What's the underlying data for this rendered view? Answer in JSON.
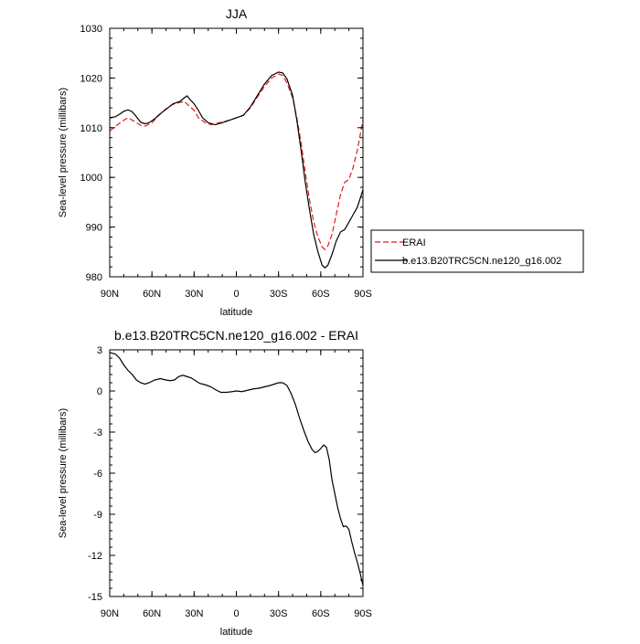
{
  "chart_data": [
    {
      "type": "line",
      "title": "JJA",
      "xlabel": "latitude",
      "ylabel": "Sea-level pressure (millibars)",
      "xlim": [
        90,
        -90
      ],
      "ylim": [
        980,
        1030
      ],
      "yticks": [
        980,
        990,
        1000,
        1010,
        1020,
        1030
      ],
      "xticks": [
        90,
        60,
        30,
        0,
        -30,
        -60,
        -90
      ],
      "xtick_labels": [
        "90N",
        "60N",
        "30N",
        "0",
        "30S",
        "60S",
        "90S"
      ],
      "legend_placement": "outside-right",
      "series": [
        {
          "name": "ERAI",
          "color": "#e41a1c",
          "dash": "dashed",
          "points": [
            [
              90,
              1009.3
            ],
            [
              85,
              1010.5
            ],
            [
              80,
              1011.5
            ],
            [
              77,
              1012
            ],
            [
              72,
              1011.2
            ],
            [
              68,
              1010.5
            ],
            [
              65,
              1010.3
            ],
            [
              60,
              1011
            ],
            [
              55,
              1012.5
            ],
            [
              50,
              1013.8
            ],
            [
              45,
              1014.7
            ],
            [
              40,
              1015.1
            ],
            [
              37,
              1015.3
            ],
            [
              34,
              1014.5
            ],
            [
              30,
              1013.5
            ],
            [
              27,
              1012
            ],
            [
              22,
              1011
            ],
            [
              18,
              1010.6
            ],
            [
              12,
              1011
            ],
            [
              5,
              1011.5
            ],
            [
              0,
              1012
            ],
            [
              -5,
              1012.5
            ],
            [
              -10,
              1014
            ],
            [
              -15,
              1016.2
            ],
            [
              -20,
              1018.3
            ],
            [
              -25,
              1020
            ],
            [
              -30,
              1020.8
            ],
            [
              -33,
              1020.5
            ],
            [
              -36,
              1019
            ],
            [
              -40,
              1016
            ],
            [
              -43,
              1012
            ],
            [
              -46,
              1007
            ],
            [
              -49,
              1001
            ],
            [
              -52,
              995.5
            ],
            [
              -55,
              991
            ],
            [
              -58,
              988
            ],
            [
              -61,
              986
            ],
            [
              -63,
              985.5
            ],
            [
              -65,
              986.2
            ],
            [
              -68,
              988.5
            ],
            [
              -71,
              992.5
            ],
            [
              -74,
              996.5
            ],
            [
              -77,
              999
            ],
            [
              -80,
              999.6
            ],
            [
              -83,
              1002
            ],
            [
              -86,
              1005.5
            ],
            [
              -90,
              1011.5
            ]
          ]
        },
        {
          "name": "b.e13.B20TRC5CN.ne120_g16.002",
          "color": "#000000",
          "dash": "solid",
          "points": [
            [
              90,
              1012
            ],
            [
              86,
              1012.2
            ],
            [
              83,
              1012.7
            ],
            [
              80,
              1013.3
            ],
            [
              77,
              1013.6
            ],
            [
              74,
              1013.2
            ],
            [
              71,
              1012.2
            ],
            [
              68,
              1011.1
            ],
            [
              65,
              1010.8
            ],
            [
              62,
              1011
            ],
            [
              58,
              1011.8
            ],
            [
              55,
              1012.6
            ],
            [
              50,
              1013.7
            ],
            [
              45,
              1014.8
            ],
            [
              40,
              1015.3
            ],
            [
              37,
              1016
            ],
            [
              35,
              1016.4
            ],
            [
              33,
              1015.7
            ],
            [
              30,
              1014.8
            ],
            [
              27,
              1013.5
            ],
            [
              24,
              1012
            ],
            [
              20,
              1011
            ],
            [
              15,
              1010.6
            ],
            [
              10,
              1011
            ],
            [
              5,
              1011.5
            ],
            [
              0,
              1012
            ],
            [
              -5,
              1012.5
            ],
            [
              -10,
              1014.2
            ],
            [
              -15,
              1016.5
            ],
            [
              -20,
              1018.8
            ],
            [
              -25,
              1020.5
            ],
            [
              -30,
              1021.2
            ],
            [
              -33,
              1021
            ],
            [
              -36,
              1019.8
            ],
            [
              -40,
              1016.5
            ],
            [
              -43,
              1011.5
            ],
            [
              -46,
              1005.5
            ],
            [
              -49,
              999
            ],
            [
              -52,
              993.5
            ],
            [
              -55,
              988.5
            ],
            [
              -58,
              985
            ],
            [
              -61,
              982.3
            ],
            [
              -63,
              981.8
            ],
            [
              -65,
              982.3
            ],
            [
              -68,
              984.5
            ],
            [
              -71,
              987.2
            ],
            [
              -74,
              989
            ],
            [
              -77,
              989.5
            ],
            [
              -80,
              991
            ],
            [
              -83,
              992.5
            ],
            [
              -86,
              994
            ],
            [
              -90,
              997.5
            ]
          ]
        }
      ]
    },
    {
      "type": "line",
      "title": "b.e13.B20TRC5CN.ne120_g16.002 - ERAI",
      "xlabel": "latitude",
      "ylabel": "Sea-level pressure (millibars)",
      "xlim": [
        90,
        -90
      ],
      "ylim": [
        -15,
        3
      ],
      "yticks": [
        -15,
        -12,
        -9,
        -6,
        -3,
        0,
        3
      ],
      "xticks": [
        90,
        60,
        30,
        0,
        -30,
        -60,
        -90
      ],
      "xtick_labels": [
        "90N",
        "60N",
        "30N",
        "0",
        "30S",
        "60S",
        "90S"
      ],
      "series": [
        {
          "color": "#000000",
          "dash": "solid",
          "points": [
            [
              90,
              2.8
            ],
            [
              86,
              2.7
            ],
            [
              83,
              2.4
            ],
            [
              80,
              1.9
            ],
            [
              77,
              1.5
            ],
            [
              74,
              1.2
            ],
            [
              71,
              0.8
            ],
            [
              68,
              0.6
            ],
            [
              65,
              0.5
            ],
            [
              62,
              0.6
            ],
            [
              58,
              0.8
            ],
            [
              54,
              0.9
            ],
            [
              50,
              0.8
            ],
            [
              47,
              0.75
            ],
            [
              44,
              0.8
            ],
            [
              41,
              1.05
            ],
            [
              38,
              1.15
            ],
            [
              35,
              1.05
            ],
            [
              32,
              0.95
            ],
            [
              29,
              0.75
            ],
            [
              26,
              0.55
            ],
            [
              22,
              0.45
            ],
            [
              18,
              0.3
            ],
            [
              15,
              0.1
            ],
            [
              11,
              -0.1
            ],
            [
              7,
              -0.1
            ],
            [
              3,
              -0.05
            ],
            [
              0,
              0
            ],
            [
              -4,
              -0.05
            ],
            [
              -8,
              0.05
            ],
            [
              -12,
              0.15
            ],
            [
              -16,
              0.2
            ],
            [
              -20,
              0.3
            ],
            [
              -24,
              0.4
            ],
            [
              -27,
              0.5
            ],
            [
              -30,
              0.6
            ],
            [
              -33,
              0.6
            ],
            [
              -36,
              0.4
            ],
            [
              -39,
              -0.2
            ],
            [
              -42,
              -1.0
            ],
            [
              -45,
              -2.0
            ],
            [
              -48,
              -2.9
            ],
            [
              -51,
              -3.7
            ],
            [
              -54,
              -4.3
            ],
            [
              -56,
              -4.5
            ],
            [
              -58,
              -4.4
            ],
            [
              -60,
              -4.2
            ],
            [
              -62,
              -3.95
            ],
            [
              -64,
              -4.1
            ],
            [
              -66,
              -5.0
            ],
            [
              -68,
              -6.5
            ],
            [
              -70,
              -7.5
            ],
            [
              -72,
              -8.5
            ],
            [
              -74,
              -9.3
            ],
            [
              -76,
              -9.9
            ],
            [
              -78,
              -9.85
            ],
            [
              -80,
              -10.1
            ],
            [
              -82,
              -11.0
            ],
            [
              -84,
              -11.8
            ],
            [
              -86,
              -12.5
            ],
            [
              -88,
              -13.3
            ],
            [
              -90,
              -14.2
            ]
          ]
        }
      ]
    }
  ]
}
